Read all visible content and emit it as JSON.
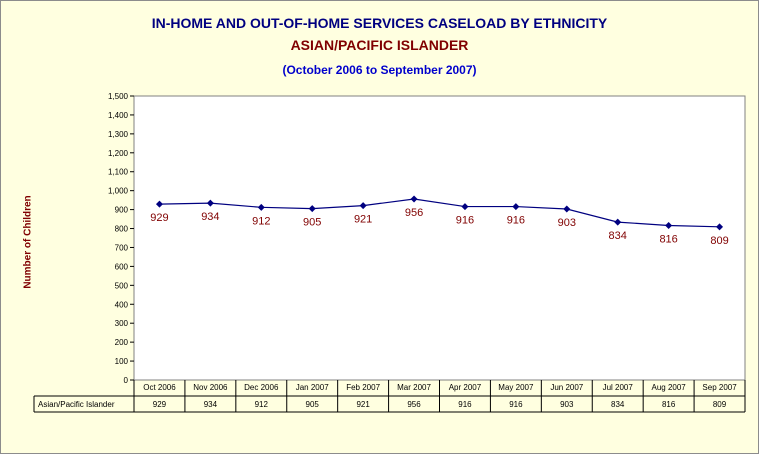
{
  "header": {
    "title": "IN-HOME AND OUT-OF-HOME SERVICES CASELOAD BY ETHNICITY",
    "subtitle": "ASIAN/PACIFIC ISLANDER",
    "period": "(October 2006 to September 2007)"
  },
  "chart_data": {
    "type": "line",
    "ylabel": "Number of Children",
    "ylim": [
      0,
      1500
    ],
    "yticks": [
      "0",
      "100",
      "200",
      "300",
      "400",
      "500",
      "600",
      "700",
      "800",
      "900",
      "1,000",
      "1,100",
      "1,200",
      "1,300",
      "1,400",
      "1,500"
    ],
    "categories": [
      "Oct 2006",
      "Nov 2006",
      "Dec 2006",
      "Jan 2007",
      "Feb 2007",
      "Mar 2007",
      "Apr 2007",
      "May 2007",
      "Jun 2007",
      "Jul 2007",
      "Aug 2007",
      "Sep 2007"
    ],
    "series": [
      {
        "name": "Asian/Pacific Islander",
        "values": [
          929,
          934,
          912,
          905,
          921,
          956,
          916,
          916,
          903,
          834,
          816,
          809
        ]
      }
    ],
    "colors": {
      "line": "#000080",
      "marker": "#000080",
      "labels": "#800000",
      "plot_bg": "#ffffff",
      "page_bg": "#ffffe0"
    },
    "data_table": true,
    "grid": false
  }
}
